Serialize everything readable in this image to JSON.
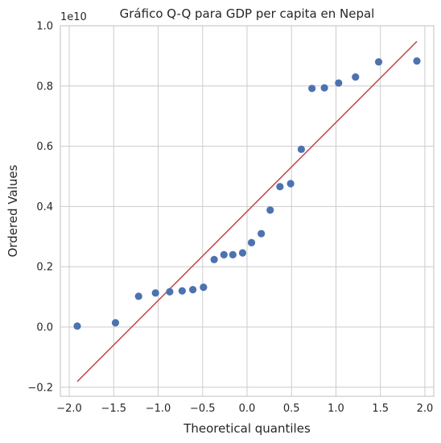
{
  "chart_data": {
    "type": "scatter",
    "title": "Gráfico Q-Q para GDP per capita en Nepal",
    "xlabel": "Theoretical quantiles",
    "ylabel": "Ordered Values",
    "y_offset_label": "1e10",
    "xlim": [
      -2.1,
      2.1
    ],
    "ylim": [
      -0.23,
      1.0
    ],
    "xticks": [
      -2.0,
      -1.5,
      -1.0,
      -0.5,
      0.0,
      0.5,
      1.0,
      1.5,
      2.0
    ],
    "xtick_labels": [
      "−2.0",
      "−1.5",
      "−1.0",
      "−0.5",
      "0.0",
      "0.5",
      "1.0",
      "1.5",
      "2.0"
    ],
    "yticks": [
      -0.2,
      0.0,
      0.2,
      0.4,
      0.6,
      0.8,
      1.0
    ],
    "ytick_labels": [
      "−0.2",
      "0.0",
      "0.2",
      "0.4",
      "0.6",
      "0.8",
      "1.0"
    ],
    "grid": true,
    "points": {
      "x": [
        -1.91,
        -1.48,
        -1.22,
        -1.03,
        -0.87,
        -0.73,
        -0.61,
        -0.49,
        -0.37,
        -0.26,
        -0.16,
        -0.05,
        0.05,
        0.16,
        0.26,
        0.37,
        0.49,
        0.61,
        0.73,
        0.87,
        1.03,
        1.22,
        1.48,
        1.91
      ],
      "y": [
        0.003,
        0.014,
        0.102,
        0.113,
        0.117,
        0.12,
        0.124,
        0.132,
        0.224,
        0.24,
        0.24,
        0.246,
        0.28,
        0.31,
        0.388,
        0.466,
        0.476,
        0.59,
        0.792,
        0.794,
        0.81,
        0.83,
        0.88,
        0.883
      ],
      "color": "#4c72b0"
    },
    "fit_line": {
      "x": [
        -1.91,
        1.91
      ],
      "y": [
        -0.181,
        0.948
      ],
      "color": "#c44e52"
    }
  }
}
